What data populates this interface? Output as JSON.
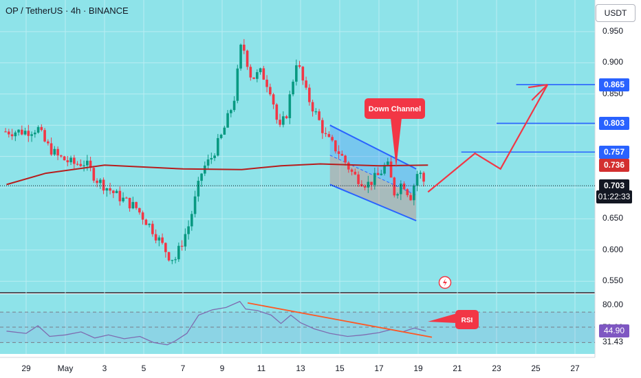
{
  "header": {
    "title": "OP / TetherUS · 4h · BINANCE",
    "currency_button": "USDT"
  },
  "price_axis": {
    "ticks": [
      "0.950",
      "0.900",
      "0.850",
      "0.800",
      "0.650",
      "0.600",
      "0.550"
    ],
    "tags": [
      {
        "label": "0.865",
        "value": 0.865,
        "color": "#2962ff"
      },
      {
        "label": "0.803",
        "value": 0.803,
        "color": "#2962ff"
      },
      {
        "label": "0.757",
        "value": 0.757,
        "color": "#2962ff"
      },
      {
        "label": "0.736",
        "value": 0.736,
        "color": "#d32f2f"
      },
      {
        "label": "0.703",
        "value": 0.703,
        "color": "#131722"
      }
    ],
    "countdown": "01:22:33"
  },
  "rsi_axis": {
    "ticks": [
      "80.00",
      "50.20",
      "31.43"
    ],
    "current_label": "44.90",
    "current_value": 44.9
  },
  "time_axis": {
    "labels": [
      "29",
      "May",
      "3",
      "5",
      "7",
      "9",
      "11",
      "13",
      "15",
      "17",
      "19",
      "21",
      "23",
      "25",
      "27"
    ]
  },
  "annotations": {
    "down_channel": "Down Channel",
    "rsi": "RSI"
  },
  "chart_data": {
    "type": "candlestick",
    "ylim": [
      0.54,
      0.975
    ],
    "rsi_ylim": [
      25,
      88
    ],
    "close_path": [
      {
        "d": 0.0,
        "p": 0.79
      },
      {
        "d": 0.6,
        "p": 0.795
      },
      {
        "d": 1.0,
        "p": 0.77
      },
      {
        "d": 1.6,
        "p": 0.75
      },
      {
        "d": 2.4,
        "p": 0.738
      },
      {
        "d": 3.0,
        "p": 0.74
      },
      {
        "d": 3.6,
        "p": 0.713
      },
      {
        "d": 4.6,
        "p": 0.688
      },
      {
        "d": 5.6,
        "p": 0.668
      },
      {
        "d": 6.4,
        "p": 0.635
      },
      {
        "d": 7.3,
        "p": 0.59
      },
      {
        "d": 7.6,
        "p": 0.585
      },
      {
        "d": 8.3,
        "p": 0.64
      },
      {
        "d": 9.0,
        "p": 0.73
      },
      {
        "d": 9.4,
        "p": 0.745
      },
      {
        "d": 10.0,
        "p": 0.785
      },
      {
        "d": 10.6,
        "p": 0.84
      },
      {
        "d": 11.0,
        "p": 0.935
      },
      {
        "d": 11.5,
        "p": 0.875
      },
      {
        "d": 12.0,
        "p": 0.885
      },
      {
        "d": 12.5,
        "p": 0.855
      },
      {
        "d": 12.9,
        "p": 0.79
      },
      {
        "d": 13.3,
        "p": 0.82
      },
      {
        "d": 13.8,
        "p": 0.905
      },
      {
        "d": 14.3,
        "p": 0.85
      },
      {
        "d": 14.9,
        "p": 0.81
      },
      {
        "d": 15.3,
        "p": 0.78
      },
      {
        "d": 16.0,
        "p": 0.755
      },
      {
        "d": 16.7,
        "p": 0.72
      },
      {
        "d": 17.4,
        "p": 0.705
      },
      {
        "d": 18.0,
        "p": 0.72
      },
      {
        "d": 18.4,
        "p": 0.74
      },
      {
        "d": 18.8,
        "p": 0.69
      },
      {
        "d": 19.2,
        "p": 0.71
      },
      {
        "d": 19.6,
        "p": 0.685
      },
      {
        "d": 20.0,
        "p": 0.728
      },
      {
        "d": 20.4,
        "p": 0.703
      }
    ],
    "moving_average": [
      {
        "d": -1.0,
        "p": 0.705
      },
      {
        "d": 1.0,
        "p": 0.723
      },
      {
        "d": 4.0,
        "p": 0.736
      },
      {
        "d": 8.0,
        "p": 0.73
      },
      {
        "d": 11.0,
        "p": 0.729
      },
      {
        "d": 13.0,
        "p": 0.735
      },
      {
        "d": 15.0,
        "p": 0.738
      },
      {
        "d": 18.0,
        "p": 0.735
      },
      {
        "d": 20.5,
        "p": 0.736
      }
    ],
    "down_channel": {
      "upper": [
        {
          "d": 15.5,
          "p": 0.8
        },
        {
          "d": 19.9,
          "p": 0.73
        }
      ],
      "lower": [
        {
          "d": 15.5,
          "p": 0.705
        },
        {
          "d": 19.9,
          "p": 0.647
        }
      ],
      "middle": [
        {
          "d": 15.5,
          "p": 0.752
        },
        {
          "d": 19.9,
          "p": 0.688
        }
      ]
    },
    "projection": [
      {
        "d": 20.5,
        "p": 0.693
      },
      {
        "d": 22.9,
        "p": 0.755
      },
      {
        "d": 24.2,
        "p": 0.73
      },
      {
        "d": 26.6,
        "p": 0.865
      },
      {
        "d": 25.8,
        "p": 0.84
      }
    ],
    "target_levels": [
      {
        "value": 0.865,
        "from_day": 25.0
      },
      {
        "value": 0.803,
        "from_day": 24.0
      },
      {
        "value": 0.757,
        "from_day": 22.2
      }
    ],
    "rsi": [
      {
        "d": -1.0,
        "v": 45
      },
      {
        "d": 0.0,
        "v": 42
      },
      {
        "d": 0.6,
        "v": 52
      },
      {
        "d": 1.2,
        "v": 38
      },
      {
        "d": 2.0,
        "v": 40
      },
      {
        "d": 2.8,
        "v": 44
      },
      {
        "d": 3.5,
        "v": 36
      },
      {
        "d": 4.2,
        "v": 40
      },
      {
        "d": 5.0,
        "v": 35
      },
      {
        "d": 5.8,
        "v": 38
      },
      {
        "d": 6.5,
        "v": 30
      },
      {
        "d": 7.2,
        "v": 27
      },
      {
        "d": 7.6,
        "v": 32
      },
      {
        "d": 8.2,
        "v": 42
      },
      {
        "d": 8.8,
        "v": 66
      },
      {
        "d": 9.5,
        "v": 73
      },
      {
        "d": 10.2,
        "v": 76
      },
      {
        "d": 10.9,
        "v": 84
      },
      {
        "d": 11.2,
        "v": 74
      },
      {
        "d": 11.8,
        "v": 72
      },
      {
        "d": 12.5,
        "v": 66
      },
      {
        "d": 13.0,
        "v": 55
      },
      {
        "d": 13.5,
        "v": 66
      },
      {
        "d": 14.0,
        "v": 56
      },
      {
        "d": 14.7,
        "v": 48
      },
      {
        "d": 15.5,
        "v": 42
      },
      {
        "d": 16.4,
        "v": 38
      },
      {
        "d": 17.2,
        "v": 40
      },
      {
        "d": 18.0,
        "v": 43
      },
      {
        "d": 18.6,
        "v": 47
      },
      {
        "d": 19.2,
        "v": 44
      },
      {
        "d": 19.8,
        "v": 49
      },
      {
        "d": 20.4,
        "v": 44.9
      }
    ],
    "rsi_trendline": [
      {
        "d": 11.3,
        "v": 82
      },
      {
        "d": 20.7,
        "v": 37
      }
    ],
    "rsi_levels": [
      70,
      50.2,
      30
    ]
  }
}
